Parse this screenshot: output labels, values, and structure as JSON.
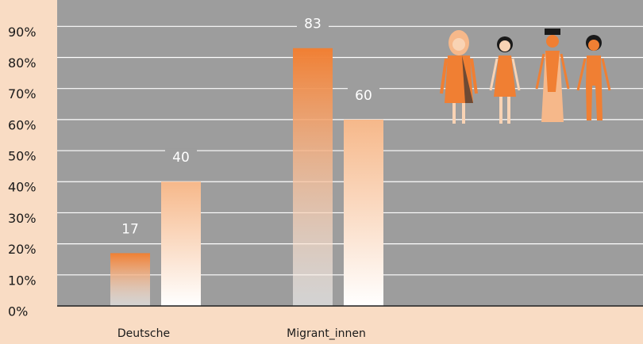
{
  "chart_data": {
    "type": "bar",
    "categories": [
      "Deutsche",
      "Migrant_innen"
    ],
    "series": [
      {
        "color": "#f07f33",
        "values": [
          17,
          83
        ]
      },
      {
        "color": "#f6b88a",
        "values": [
          40,
          60
        ]
      }
    ],
    "ylim": [
      0,
      98.5
    ],
    "yticks": [
      {
        "value": 0,
        "label": "0%"
      },
      {
        "value": 10,
        "label": "10%"
      },
      {
        "value": 20,
        "label": "20%"
      },
      {
        "value": 30,
        "label": "30%"
      },
      {
        "value": 40,
        "label": "40%"
      },
      {
        "value": 50,
        "label": "50%"
      },
      {
        "value": 60,
        "label": "60%"
      },
      {
        "value": 70,
        "label": "70%"
      },
      {
        "value": 80,
        "label": "80%"
      },
      {
        "value": 90,
        "label": "90%"
      }
    ],
    "grid": true
  }
}
